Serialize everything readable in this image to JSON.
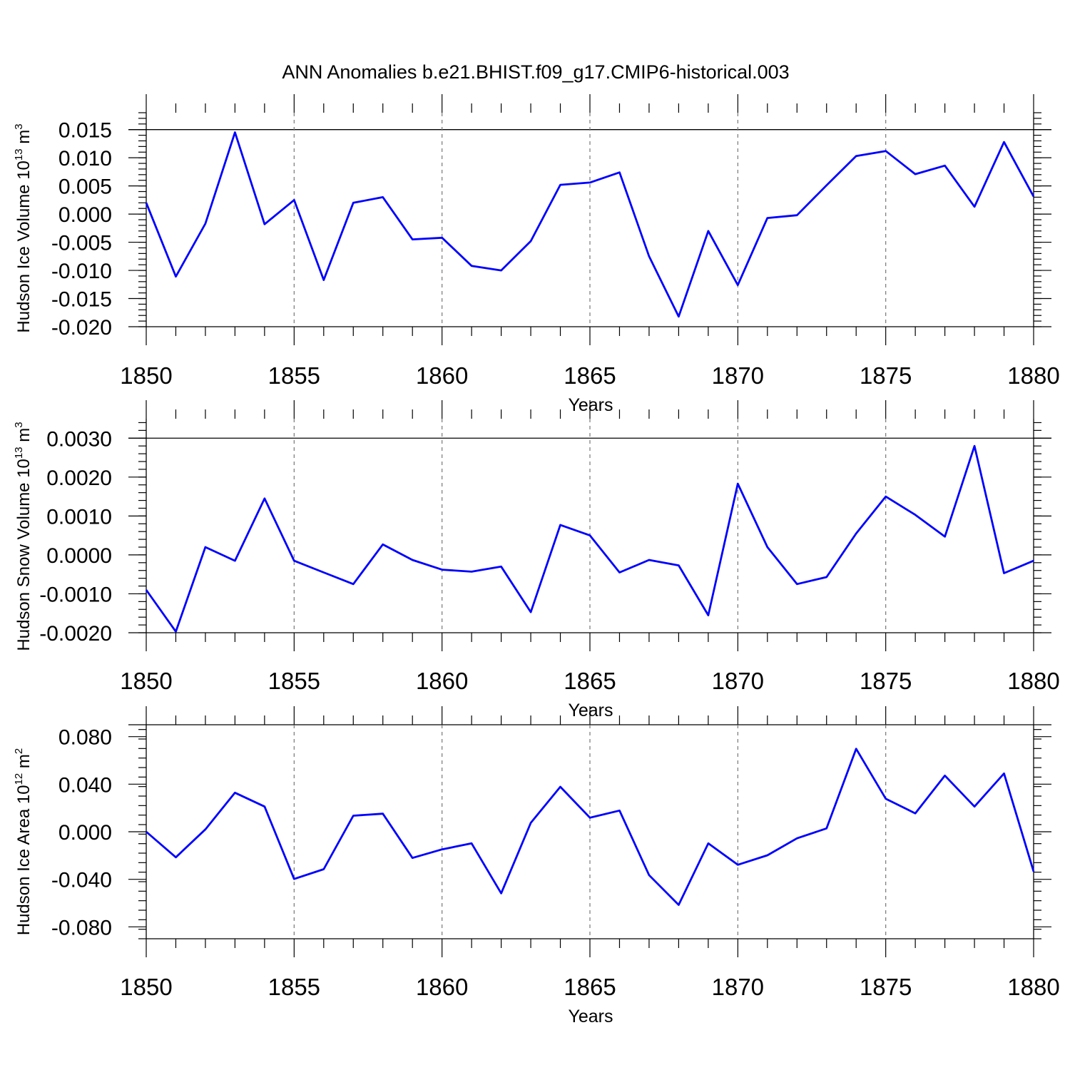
{
  "figure": {
    "title": "ANN Anomalies b.e21.BHIST.f09_g17.CMIP6-historical.003"
  },
  "chart_data": [
    {
      "type": "line",
      "title": "",
      "xlabel": "Years",
      "ylabel": {
        "prefix": "Hudson Ice Volume 10",
        "exp": "13",
        "unit": " m",
        "unit_exp": "3"
      },
      "x": [
        1850,
        1851,
        1852,
        1853,
        1854,
        1855,
        1856,
        1857,
        1858,
        1859,
        1860,
        1861,
        1862,
        1863,
        1864,
        1865,
        1866,
        1867,
        1868,
        1869,
        1870,
        1871,
        1872,
        1873,
        1874,
        1875,
        1876,
        1877,
        1878,
        1879,
        1880
      ],
      "series": [
        {
          "name": "Hudson Ice Volume",
          "color": "#0000ff",
          "values": [
            0.002,
            -0.0111,
            -0.0017,
            0.0145,
            -0.0018,
            0.0025,
            -0.0117,
            0.002,
            0.003,
            -0.0045,
            -0.0042,
            -0.0092,
            -0.01,
            -0.0048,
            0.0052,
            0.0056,
            0.0074,
            -0.0075,
            -0.0182,
            -0.003,
            -0.0126,
            -0.0007,
            -0.0002,
            0.0051,
            0.0103,
            0.0112,
            0.0071,
            0.0086,
            0.0013,
            0.0128,
            0.0031
          ]
        }
      ],
      "xlim": [
        1850,
        1880
      ],
      "ylim": [
        -0.02,
        0.018
      ],
      "xticks": [
        1850,
        1855,
        1860,
        1865,
        1870,
        1875,
        1880
      ],
      "xtick_labels": [
        "1850",
        "1855",
        "1860",
        "1865",
        "1870",
        "1875",
        "1880"
      ],
      "yticks": [
        -0.02,
        -0.015,
        -0.01,
        -0.005,
        0,
        0.005,
        0.01,
        0.015
      ],
      "ytick_labels": [
        "-0.020",
        "-0.015",
        "-0.010",
        "-0.005",
        "0.000",
        "0.005",
        "0.010",
        "0.015"
      ],
      "yminor_step": 0.001
    },
    {
      "type": "line",
      "title": "",
      "xlabel": "Years",
      "ylabel": {
        "prefix": "Hudson Snow Volume 10",
        "exp": "13",
        "unit": " m",
        "unit_exp": "3"
      },
      "x": [
        1850,
        1851,
        1852,
        1853,
        1854,
        1855,
        1856,
        1857,
        1858,
        1859,
        1860,
        1861,
        1862,
        1863,
        1864,
        1865,
        1866,
        1867,
        1868,
        1869,
        1870,
        1871,
        1872,
        1873,
        1874,
        1875,
        1876,
        1877,
        1878,
        1879,
        1880
      ],
      "series": [
        {
          "name": "Hudson Snow Volume",
          "color": "#0000ff",
          "values": [
            -0.0009,
            -0.00197,
            0.0002,
            -0.00015,
            0.00145,
            -0.00015,
            -0.00045,
            -0.00075,
            0.00027,
            -0.00013,
            -0.00038,
            -0.00043,
            -0.0003,
            -0.00147,
            0.00077,
            0.0005,
            -0.00045,
            -0.00013,
            -0.00027,
            -0.00155,
            0.00183,
            0.0002,
            -0.00075,
            -0.00057,
            0.00055,
            0.0015,
            0.00103,
            0.00047,
            0.0028,
            -0.00047,
            -0.00015
          ]
        }
      ],
      "xlim": [
        1850,
        1880
      ],
      "ylim": [
        -0.002,
        0.0035
      ],
      "xticks": [
        1850,
        1855,
        1860,
        1865,
        1870,
        1875,
        1880
      ],
      "xtick_labels": [
        "1850",
        "1855",
        "1860",
        "1865",
        "1870",
        "1875",
        "1880"
      ],
      "yticks": [
        -0.002,
        -0.001,
        0,
        0.001,
        0.002,
        0.003
      ],
      "ytick_labels": [
        "-0.0020",
        "-0.0010",
        "0.0000",
        "0.0010",
        "0.0020",
        "0.0030"
      ],
      "yminor_step": 0.0002
    },
    {
      "type": "line",
      "title": "",
      "xlabel": "Years",
      "ylabel": {
        "prefix": "Hudson Ice Area 10",
        "exp": "12",
        "unit": " m",
        "unit_exp": "2"
      },
      "x": [
        1850,
        1851,
        1852,
        1853,
        1854,
        1855,
        1856,
        1857,
        1858,
        1859,
        1860,
        1861,
        1862,
        1863,
        1864,
        1865,
        1866,
        1867,
        1868,
        1869,
        1870,
        1871,
        1872,
        1873,
        1874,
        1875,
        1876,
        1877,
        1878,
        1879,
        1880
      ],
      "series": [
        {
          "name": "Hudson Ice Area",
          "color": "#0000ff",
          "values": [
            0,
            -0.0215,
            0.002,
            0.0328,
            0.0212,
            -0.0397,
            -0.0315,
            0.0135,
            0.0152,
            -0.022,
            -0.0148,
            -0.0098,
            -0.0518,
            0.0075,
            0.0378,
            0.0118,
            0.0178,
            -0.0365,
            -0.0615,
            -0.0098,
            -0.0278,
            -0.0198,
            -0.0055,
            0.0028,
            0.0698,
            0.0278,
            0.0155,
            0.0472,
            0.0212,
            0.049,
            -0.0335
          ]
        }
      ],
      "xlim": [
        1850,
        1880
      ],
      "ylim": [
        -0.09,
        0.09
      ],
      "xticks": [
        1850,
        1855,
        1860,
        1865,
        1870,
        1875,
        1880
      ],
      "xtick_labels": [
        "1850",
        "1855",
        "1860",
        "1865",
        "1870",
        "1875",
        "1880"
      ],
      "yticks": [
        -0.08,
        -0.04,
        0,
        0.04,
        0.08
      ],
      "ytick_labels": [
        "-0.080",
        "-0.040",
        "0.000",
        "0.040",
        "0.080"
      ],
      "yminor_step": 0.008
    }
  ]
}
